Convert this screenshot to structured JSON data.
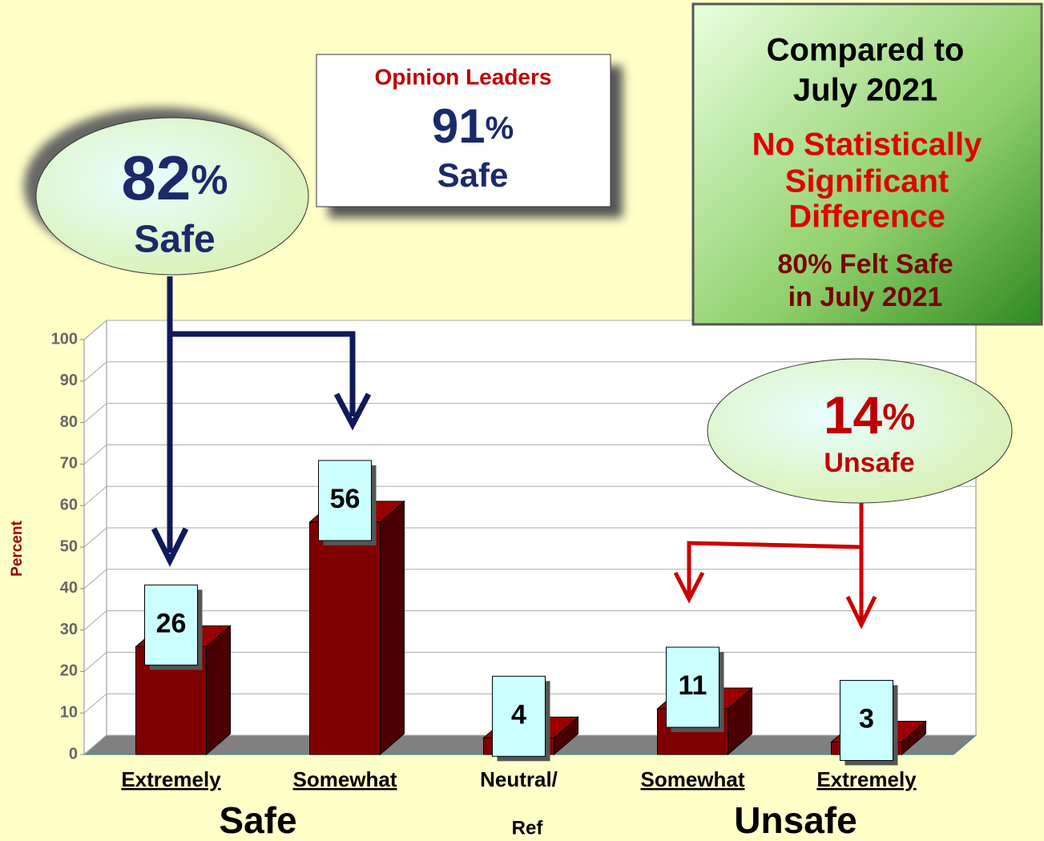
{
  "chart_data": {
    "type": "bar",
    "y_label": "Percent",
    "categories": [
      "Extremely",
      "Somewhat",
      "Neutral/",
      "Somewhat",
      "Extremely"
    ],
    "category_sublabel": "Ref",
    "group_labels": [
      "Safe",
      "Unsafe"
    ],
    "values": [
      26,
      56,
      4,
      11,
      3
    ],
    "color": "#800000",
    "ylim": [
      0,
      100
    ],
    "yticks": [
      0,
      10,
      20,
      30,
      40,
      50,
      60,
      70,
      80,
      90,
      100
    ],
    "grid": true
  },
  "callouts": {
    "safe": {
      "number": "82",
      "unit": "%",
      "label": "Safe"
    },
    "opinion_leaders": {
      "title": "Opinion Leaders",
      "number": "91",
      "unit": "%",
      "label": "Safe"
    },
    "unsafe": {
      "number": "14",
      "unit": "%",
      "label": "Unsafe"
    },
    "comparison": {
      "title": [
        "Compared to",
        "July 2021"
      ],
      "finding": [
        "No Statistically",
        "Significant",
        "Difference"
      ],
      "note": [
        "80% Felt Safe",
        "in July 2021"
      ]
    }
  }
}
